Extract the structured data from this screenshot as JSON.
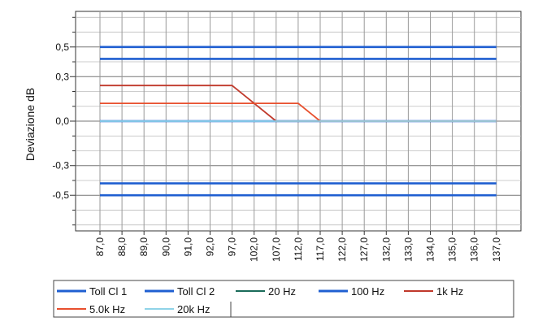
{
  "chart_data": {
    "type": "line",
    "xlabel": "",
    "ylabel": "Deviazione dB",
    "x_categories": [
      "87,0",
      "88,0",
      "89,0",
      "90,0",
      "91,0",
      "92,0",
      "97,0",
      "102,0",
      "107,0",
      "112,0",
      "117,0",
      "122,0",
      "127,0",
      "132,0",
      "133,0",
      "134,0",
      "135,0",
      "136,0",
      "137,0"
    ],
    "y_ticks": [
      {
        "value": 0.5,
        "label": "0,5"
      },
      {
        "value": 0.3,
        "label": "0,3"
      },
      {
        "value": 0.0,
        "label": "0,0"
      },
      {
        "value": -0.3,
        "label": "-0,3"
      },
      {
        "value": -0.5,
        "label": "-0,5"
      }
    ],
    "ylim": [
      -0.74,
      0.74
    ],
    "grid": true,
    "legend_position": "bottom",
    "series": [
      {
        "name": "Toll Cl 1",
        "color": "#1f5fd1",
        "values": [
          0.5,
          0.5,
          0.5,
          0.5,
          0.5,
          0.5,
          0.5,
          0.5,
          0.5,
          0.5,
          0.5,
          0.5,
          0.5,
          0.5,
          0.5,
          0.5,
          0.5,
          0.5,
          0.5
        ]
      },
      {
        "name": "Toll Cl 1",
        "color": "#1f5fd1",
        "values": [
          -0.5,
          -0.5,
          -0.5,
          -0.5,
          -0.5,
          -0.5,
          -0.5,
          -0.5,
          -0.5,
          -0.5,
          -0.5,
          -0.5,
          -0.5,
          -0.5,
          -0.5,
          -0.5,
          -0.5,
          -0.5,
          -0.5
        ]
      },
      {
        "name": "Toll Cl 2",
        "color": "#1f5fd1",
        "values": [
          0.42,
          0.42,
          0.42,
          0.42,
          0.42,
          0.42,
          0.42,
          0.42,
          0.42,
          0.42,
          0.42,
          0.42,
          0.42,
          0.42,
          0.42,
          0.42,
          0.42,
          0.42,
          0.42
        ]
      },
      {
        "name": "Toll Cl 2",
        "color": "#1f5fd1",
        "values": [
          -0.42,
          -0.42,
          -0.42,
          -0.42,
          -0.42,
          -0.42,
          -0.42,
          -0.42,
          -0.42,
          -0.42,
          -0.42,
          -0.42,
          -0.42,
          -0.42,
          -0.42,
          -0.42,
          -0.42,
          -0.42,
          -0.42
        ]
      },
      {
        "name": "20 Hz",
        "color": "#1a6b5a",
        "values": [
          0,
          0,
          0,
          0,
          0,
          0,
          0,
          0,
          0,
          0,
          0,
          0,
          0,
          0,
          0,
          0,
          0,
          0,
          0
        ]
      },
      {
        "name": "100 Hz",
        "color": "#1f5fd1",
        "values": [
          0,
          0,
          0,
          0,
          0,
          0,
          0,
          0,
          0,
          0,
          0,
          0,
          0,
          0,
          0,
          0,
          0,
          0,
          0
        ]
      },
      {
        "name": "1k Hz",
        "color": "#c0392b",
        "values": [
          0.24,
          0.24,
          0.24,
          0.24,
          0.24,
          0.24,
          0.24,
          0.12,
          0,
          0,
          0,
          0,
          0,
          0,
          0,
          0,
          0,
          0,
          0
        ]
      },
      {
        "name": "5.0k Hz",
        "color": "#e8502e",
        "values": [
          0.12,
          0.12,
          0.12,
          0.12,
          0.12,
          0.12,
          0.12,
          0.12,
          0.12,
          0.12,
          0,
          0,
          0,
          0,
          0,
          0,
          0,
          0,
          0
        ]
      },
      {
        "name": "20k Hz",
        "color": "#8fd3e8",
        "values": [
          0,
          0,
          0,
          0,
          0,
          0,
          0,
          0,
          0,
          0,
          0,
          0,
          0,
          0,
          0,
          0,
          0,
          0,
          0
        ]
      }
    ],
    "legend": [
      {
        "label": "Toll Cl 1",
        "color": "#1f5fd1"
      },
      {
        "label": "Toll Cl 2",
        "color": "#1f5fd1"
      },
      {
        "label": "20 Hz",
        "color": "#1a6b5a"
      },
      {
        "label": "100 Hz",
        "color": "#1f5fd1"
      },
      {
        "label": "1k Hz",
        "color": "#c0392b"
      },
      {
        "label": "5.0k Hz",
        "color": "#e8502e"
      },
      {
        "label": "20k Hz",
        "color": "#8fd3e8"
      }
    ]
  }
}
